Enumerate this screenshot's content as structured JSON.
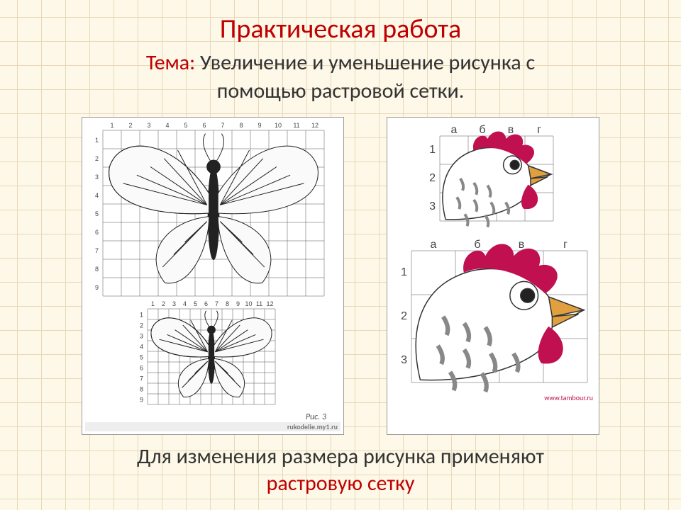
{
  "title": "Практическая работа",
  "theme_label": "Тема:",
  "subtitle_part1": "Увеличение и уменьшение рисунка с",
  "subtitle_part2": "помощью растровой сетки.",
  "footer_line1": "Для изменения размера рисунка применяют",
  "footer_line2": "растровую сетку",
  "colors": {
    "accent": "#c00000",
    "text": "#333333",
    "gridline": "#555555",
    "paper_bg": "#fdf8e8",
    "paper_line": "#e8d8b8",
    "rooster_comb": "#c01050",
    "rooster_beak": "#e0a040",
    "rooster_feather": "#888888"
  },
  "butterfly": {
    "large": {
      "cols": 12,
      "rows": 9,
      "col_labels": [
        "1",
        "2",
        "3",
        "4",
        "5",
        "6",
        "7",
        "8",
        "9",
        "10",
        "11",
        "12"
      ],
      "row_labels": [
        "1",
        "2",
        "3",
        "4",
        "5",
        "6",
        "7",
        "8",
        "9"
      ],
      "cell": 26
    },
    "small": {
      "cols": 12,
      "rows": 9,
      "col_labels": [
        "1",
        "2",
        "3",
        "4",
        "5",
        "6",
        "7",
        "8",
        "9",
        "10",
        "11",
        "12"
      ],
      "row_labels": [
        "1",
        "2",
        "3",
        "4",
        "5",
        "6",
        "7",
        "8",
        "9"
      ],
      "cell": 15
    },
    "caption": "Рис. 3",
    "watermark": "rukodelie.my1.ru"
  },
  "rooster": {
    "small": {
      "cols": 4,
      "rows": 3,
      "col_labels": [
        "а",
        "б",
        "в",
        "г"
      ],
      "row_labels": [
        "1",
        "2",
        "3"
      ],
      "cell": 40
    },
    "large": {
      "cols": 4,
      "rows": 3,
      "col_labels": [
        "а",
        "б",
        "в",
        "г"
      ],
      "row_labels": [
        "1",
        "2",
        "3"
      ],
      "cell": 62
    },
    "watermark": "www.tambour.ru"
  }
}
